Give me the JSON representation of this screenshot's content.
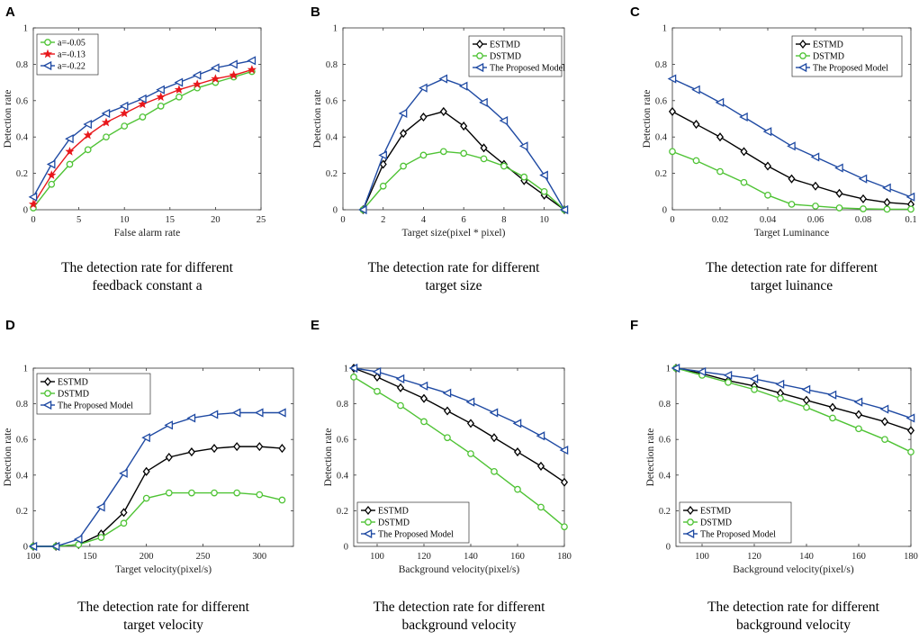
{
  "colors": {
    "ESTMD": "#000000",
    "DSTMD": "#4fc335",
    "Proposed": "#1f4aa3",
    "a005": "#4fc335",
    "a013": "#e8171b",
    "a022": "#1f4aa3"
  },
  "chart_data": [
    {
      "panel": "A",
      "type": "line",
      "xlabel": "False alarm rate",
      "ylabel": "Detection rate",
      "xlim": [
        0,
        25
      ],
      "ylim": [
        0,
        1
      ],
      "xticks": [
        0,
        5,
        10,
        15,
        20,
        25
      ],
      "yticks": [
        0,
        0.2,
        0.4,
        0.6,
        0.8,
        1
      ],
      "legend_position": "top-left",
      "caption": [
        "The detection rate for different",
        "feedback constant a"
      ],
      "series": [
        {
          "name": "a=-0.05",
          "color_key": "a005",
          "marker": "circle",
          "x": [
            0,
            2,
            4,
            6,
            8,
            10,
            12,
            14,
            16,
            18,
            20,
            22,
            24
          ],
          "y": [
            0.01,
            0.14,
            0.25,
            0.33,
            0.4,
            0.46,
            0.51,
            0.57,
            0.62,
            0.67,
            0.7,
            0.73,
            0.76
          ]
        },
        {
          "name": "a=-0.13",
          "color_key": "a013",
          "marker": "star",
          "x": [
            0,
            2,
            4,
            6,
            8,
            10,
            12,
            14,
            16,
            18,
            20,
            22,
            24
          ],
          "y": [
            0.03,
            0.19,
            0.32,
            0.41,
            0.48,
            0.53,
            0.58,
            0.62,
            0.66,
            0.69,
            0.72,
            0.74,
            0.77
          ]
        },
        {
          "name": "a=-0.22",
          "color_key": "a022",
          "marker": "triangle-left",
          "x": [
            0,
            2,
            4,
            6,
            8,
            10,
            12,
            14,
            16,
            18,
            20,
            22,
            24
          ],
          "y": [
            0.07,
            0.25,
            0.39,
            0.47,
            0.53,
            0.57,
            0.61,
            0.66,
            0.7,
            0.74,
            0.78,
            0.8,
            0.82
          ]
        }
      ]
    },
    {
      "panel": "B",
      "type": "line",
      "xlabel": "Target size(pixel * pixel)",
      "ylabel": "Detection rate",
      "xlim": [
        0,
        11
      ],
      "ylim": [
        0,
        1
      ],
      "xticks": [
        0,
        2,
        4,
        6,
        8,
        10
      ],
      "yticks": [
        0,
        0.2,
        0.4,
        0.6,
        0.8,
        1
      ],
      "legend_position": "top-right",
      "caption": [
        "The detection rate for different",
        "target size"
      ],
      "series": [
        {
          "name": "ESTMD",
          "color_key": "ESTMD",
          "marker": "diamond",
          "x": [
            1,
            2,
            3,
            4,
            5,
            6,
            7,
            8,
            9,
            10,
            11
          ],
          "y": [
            0,
            0.25,
            0.42,
            0.51,
            0.54,
            0.46,
            0.34,
            0.25,
            0.16,
            0.08,
            0
          ]
        },
        {
          "name": "DSTMD",
          "color_key": "DSTMD",
          "marker": "circle",
          "x": [
            1,
            2,
            3,
            4,
            5,
            6,
            7,
            8,
            9,
            10,
            11
          ],
          "y": [
            0,
            0.13,
            0.24,
            0.3,
            0.32,
            0.31,
            0.28,
            0.24,
            0.18,
            0.1,
            0
          ]
        },
        {
          "name": "The Proposed Model",
          "color_key": "Proposed",
          "marker": "triangle-left",
          "x": [
            1,
            2,
            3,
            4,
            5,
            6,
            7,
            8,
            9,
            10,
            11
          ],
          "y": [
            0,
            0.3,
            0.53,
            0.67,
            0.72,
            0.68,
            0.59,
            0.49,
            0.35,
            0.19,
            0
          ]
        }
      ]
    },
    {
      "panel": "C",
      "type": "line",
      "xlabel": "Target Luminance",
      "ylabel": "Detection rate",
      "xlim": [
        0,
        0.1
      ],
      "ylim": [
        0,
        1
      ],
      "xticks": [
        0,
        0.02,
        0.04,
        0.06,
        0.08,
        0.1
      ],
      "yticks": [
        0,
        0.2,
        0.4,
        0.6,
        0.8,
        1
      ],
      "legend_position": "top-right",
      "caption": [
        "The detection rate for different",
        "target luinance"
      ],
      "series": [
        {
          "name": "ESTMD",
          "color_key": "ESTMD",
          "marker": "diamond",
          "x": [
            0,
            0.01,
            0.02,
            0.03,
            0.04,
            0.05,
            0.06,
            0.07,
            0.08,
            0.09,
            0.1
          ],
          "y": [
            0.54,
            0.47,
            0.4,
            0.32,
            0.24,
            0.17,
            0.13,
            0.09,
            0.06,
            0.04,
            0.03
          ]
        },
        {
          "name": "DSTMD",
          "color_key": "DSTMD",
          "marker": "circle",
          "x": [
            0,
            0.01,
            0.02,
            0.03,
            0.04,
            0.05,
            0.06,
            0.07,
            0.08,
            0.09,
            0.1
          ],
          "y": [
            0.32,
            0.27,
            0.21,
            0.15,
            0.08,
            0.03,
            0.02,
            0.01,
            0.005,
            0.003,
            0.003
          ]
        },
        {
          "name": "The Proposed Model",
          "color_key": "Proposed",
          "marker": "triangle-left",
          "x": [
            0,
            0.01,
            0.02,
            0.03,
            0.04,
            0.05,
            0.06,
            0.07,
            0.08,
            0.09,
            0.1
          ],
          "y": [
            0.72,
            0.66,
            0.59,
            0.51,
            0.43,
            0.35,
            0.29,
            0.23,
            0.17,
            0.12,
            0.07
          ]
        }
      ]
    },
    {
      "panel": "D",
      "type": "line",
      "xlabel": "Target velocity(pixel/s)",
      "ylabel": "Detection rate",
      "xlim": [
        100,
        330
      ],
      "ylim": [
        0,
        1
      ],
      "xticks": [
        100,
        150,
        200,
        250,
        300
      ],
      "yticks": [
        0,
        0.2,
        0.4,
        0.6,
        0.8,
        1
      ],
      "legend_position": "top-left",
      "caption": [
        "The detection rate for different",
        "target velocity"
      ],
      "series": [
        {
          "name": "ESTMD",
          "color_key": "ESTMD",
          "marker": "diamond",
          "x": [
            100,
            120,
            140,
            160,
            180,
            200,
            220,
            240,
            260,
            280,
            300,
            320
          ],
          "y": [
            0,
            0,
            0.01,
            0.07,
            0.19,
            0.42,
            0.5,
            0.53,
            0.55,
            0.56,
            0.56,
            0.55
          ]
        },
        {
          "name": "DSTMD",
          "color_key": "DSTMD",
          "marker": "circle",
          "x": [
            100,
            120,
            140,
            160,
            180,
            200,
            220,
            240,
            260,
            280,
            300,
            320
          ],
          "y": [
            0,
            0,
            0.01,
            0.05,
            0.13,
            0.27,
            0.3,
            0.3,
            0.3,
            0.3,
            0.29,
            0.26
          ]
        },
        {
          "name": "The Proposed Model",
          "color_key": "Proposed",
          "marker": "triangle-left",
          "x": [
            100,
            120,
            140,
            160,
            180,
            200,
            220,
            240,
            260,
            280,
            300,
            320
          ],
          "y": [
            0,
            0,
            0.04,
            0.22,
            0.41,
            0.61,
            0.68,
            0.72,
            0.74,
            0.75,
            0.75,
            0.75
          ]
        }
      ]
    },
    {
      "panel": "E",
      "type": "line",
      "xlabel": "Background velocity(pixel/s)",
      "ylabel": "Detection rate",
      "xlim": [
        90,
        180
      ],
      "ylim": [
        0,
        1
      ],
      "xticks": [
        100,
        120,
        140,
        160,
        180
      ],
      "yticks": [
        0,
        0.2,
        0.4,
        0.6,
        0.8,
        1
      ],
      "legend_position": "bottom-left",
      "caption": [
        "The detection rate for different",
        "background velocity"
      ],
      "series": [
        {
          "name": "ESTMD",
          "color_key": "ESTMD",
          "marker": "diamond",
          "x": [
            90,
            100,
            110,
            120,
            130,
            140,
            150,
            160,
            170,
            180
          ],
          "y": [
            1,
            0.95,
            0.89,
            0.83,
            0.76,
            0.69,
            0.61,
            0.53,
            0.45,
            0.36
          ]
        },
        {
          "name": "DSTMD",
          "color_key": "DSTMD",
          "marker": "circle",
          "x": [
            90,
            100,
            110,
            120,
            130,
            140,
            150,
            160,
            170,
            180
          ],
          "y": [
            0.95,
            0.87,
            0.79,
            0.7,
            0.61,
            0.52,
            0.42,
            0.32,
            0.22,
            0.11
          ]
        },
        {
          "name": "The Proposed Model",
          "color_key": "Proposed",
          "marker": "triangle-left",
          "x": [
            90,
            100,
            110,
            120,
            130,
            140,
            150,
            160,
            170,
            180
          ],
          "y": [
            1,
            0.98,
            0.94,
            0.9,
            0.86,
            0.81,
            0.75,
            0.69,
            0.62,
            0.54
          ]
        }
      ]
    },
    {
      "panel": "F",
      "type": "line",
      "xlabel": "Background velocity(pixel/s)",
      "ylabel": "Detection rate",
      "xlim": [
        90,
        180
      ],
      "ylim": [
        0,
        1
      ],
      "xticks": [
        100,
        120,
        140,
        160,
        180
      ],
      "yticks": [
        0,
        0.2,
        0.4,
        0.6,
        0.8,
        1
      ],
      "legend_position": "bottom-left",
      "caption": [
        "The detection rate for different",
        "background velocity"
      ],
      "series": [
        {
          "name": "ESTMD",
          "color_key": "ESTMD",
          "marker": "diamond",
          "x": [
            90,
            100,
            110,
            120,
            130,
            140,
            150,
            160,
            170,
            180
          ],
          "y": [
            1,
            0.97,
            0.93,
            0.9,
            0.86,
            0.82,
            0.78,
            0.74,
            0.7,
            0.65
          ]
        },
        {
          "name": "DSTMD",
          "color_key": "DSTMD",
          "marker": "circle",
          "x": [
            90,
            100,
            110,
            120,
            130,
            140,
            150,
            160,
            170,
            180
          ],
          "y": [
            1,
            0.96,
            0.92,
            0.88,
            0.83,
            0.78,
            0.72,
            0.66,
            0.6,
            0.53
          ]
        },
        {
          "name": "The Proposed Model",
          "color_key": "Proposed",
          "marker": "triangle-left",
          "x": [
            90,
            100,
            110,
            120,
            130,
            140,
            150,
            160,
            170,
            180
          ],
          "y": [
            1,
            0.98,
            0.96,
            0.94,
            0.91,
            0.88,
            0.85,
            0.81,
            0.77,
            0.72
          ]
        }
      ]
    }
  ]
}
